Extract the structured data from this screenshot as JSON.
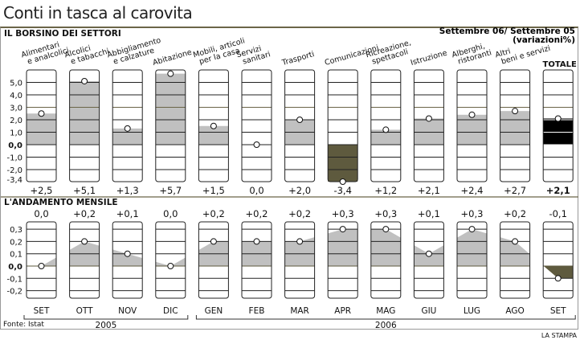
{
  "title": "Conti in tasca al carovita",
  "source": "Fonte: Istat",
  "brand": "LA STAMPA",
  "chart_data": [
    {
      "type": "bar",
      "title": "IL BORSINO DEI SETTORI",
      "subtitle": [
        "Settembre 06/ Settembre 05",
        "(variazioni%)"
      ],
      "categories": [
        [
          "Alimentari",
          "e analcolici"
        ],
        [
          "Alcolici",
          "e tabacchi"
        ],
        [
          "Abbigliamento",
          "e calzature"
        ],
        [
          "Abitazione",
          ""
        ],
        [
          "Mobili, articoli",
          "per la casa"
        ],
        [
          "Servizi",
          "sanitari"
        ],
        [
          "Trasporti",
          ""
        ],
        [
          "Comunicazioni",
          ""
        ],
        [
          "Ricreazione,",
          "spettacoli"
        ],
        [
          "Istruzione",
          ""
        ],
        [
          "Alberghi,",
          "ristoranti"
        ],
        [
          "Altri",
          "beni e servizi"
        ],
        [
          "TOTALE",
          ""
        ]
      ],
      "values": [
        2.5,
        5.1,
        1.3,
        5.7,
        1.5,
        0.0,
        2.0,
        -3.4,
        1.2,
        2.1,
        2.4,
        2.7,
        2.1
      ],
      "value_labels": [
        "+2,5",
        "+5,1",
        "+1,3",
        "+5,7",
        "+1,5",
        "0,0",
        "+2,0",
        "-3,4",
        "+1,2",
        "+2,1",
        "+2,4",
        "+2,7",
        "+2,1"
      ],
      "yticks": [
        5,
        4,
        3,
        2,
        1,
        0,
        -1,
        -2,
        -3.4
      ],
      "ytick_labels": [
        "5,0",
        "4,0",
        "3,0",
        "2,0",
        "1,0",
        "0,0",
        "-1,0",
        "-2,0",
        "-3,4"
      ],
      "ylim": [
        -3.4,
        6.0
      ],
      "colors": {
        "positive": "#c0c0c0",
        "negative": "#5e5a3e",
        "total": "#000000"
      }
    },
    {
      "type": "area",
      "title": "L'ANDAMENTO MENSILE",
      "categories": [
        "SET",
        "OTT",
        "NOV",
        "DIC",
        "GEN",
        "FEB",
        "MAR",
        "APR",
        "MAG",
        "GIU",
        "LUG",
        "AGO",
        "SET"
      ],
      "values": [
        0.0,
        0.2,
        0.1,
        0.0,
        0.2,
        0.2,
        0.2,
        0.3,
        0.3,
        0.1,
        0.3,
        0.2,
        -0.1
      ],
      "value_labels": [
        "0,0",
        "+0,2",
        "+0,1",
        "0,0",
        "+0,2",
        "+0,2",
        "+0,2",
        "+0,3",
        "+0,3",
        "+0,1",
        "+0,3",
        "+0,2",
        "-0,1"
      ],
      "yticks": [
        0.3,
        0.2,
        0.1,
        0.0,
        -0.1,
        -0.2
      ],
      "ytick_labels": [
        "0,3",
        "0,2",
        "0,1",
        "0,0",
        "-0,1",
        "-0,2"
      ],
      "years": [
        {
          "label": "2005",
          "from": 0,
          "to": 3
        },
        {
          "label": "2006",
          "from": 4,
          "to": 12
        }
      ],
      "colors": {
        "positive": "#c0c0c0",
        "negative": "#5e5a3e"
      }
    }
  ]
}
